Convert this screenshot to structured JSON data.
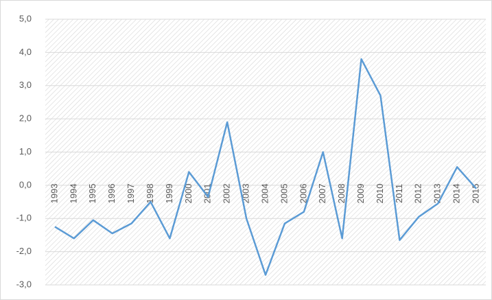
{
  "chart_data": {
    "type": "line",
    "categories": [
      "1993",
      "1994",
      "1995",
      "1996",
      "1997",
      "1998",
      "1999",
      "2000",
      "2001",
      "2002",
      "2003",
      "2004",
      "2005",
      "2006",
      "2007",
      "2008",
      "2009",
      "2010",
      "2011",
      "2012",
      "2013",
      "2014",
      "2015"
    ],
    "series": [
      {
        "color": "#5b9bd5",
        "values": [
          -1.25,
          -1.6,
          -1.05,
          -1.45,
          -1.15,
          -0.5,
          -1.6,
          0.4,
          -0.35,
          1.9,
          -1.0,
          -2.7,
          -1.15,
          -0.8,
          1.0,
          -1.6,
          3.8,
          2.7,
          -1.65,
          -0.95,
          -0.55,
          0.55,
          -0.1
        ]
      }
    ],
    "ylim": [
      -3,
      5
    ],
    "yticks": [
      {
        "value": -3,
        "label": "-3,0"
      },
      {
        "value": -2,
        "label": "-2,0"
      },
      {
        "value": -1,
        "label": "-1,0"
      },
      {
        "value": 0,
        "label": "0,0"
      },
      {
        "value": 1,
        "label": "1,0"
      },
      {
        "value": 2,
        "label": "2,0"
      },
      {
        "value": 3,
        "label": "3,0"
      },
      {
        "value": 4,
        "label": "4,0"
      },
      {
        "value": 5,
        "label": "5,0"
      }
    ],
    "grid": true
  }
}
